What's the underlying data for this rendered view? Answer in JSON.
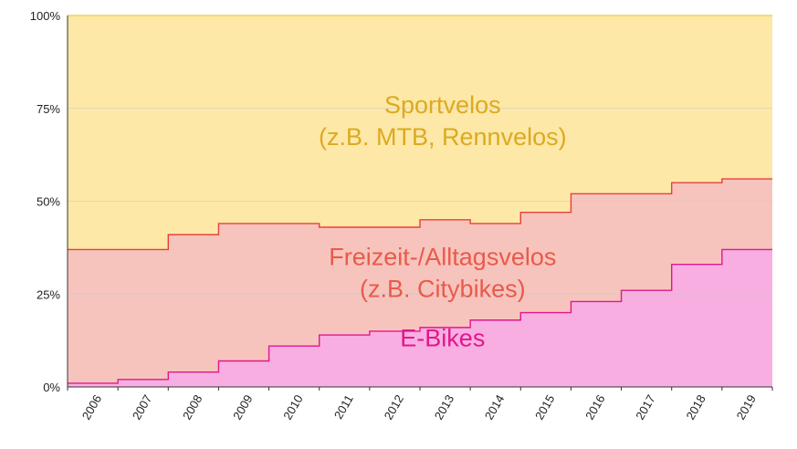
{
  "chart_data": {
    "type": "area",
    "stacking": "percent",
    "step": true,
    "categories": [
      "2006",
      "2007",
      "2008",
      "2009",
      "2010",
      "2011",
      "2012",
      "2013",
      "2014",
      "2015",
      "2016",
      "2017",
      "2018",
      "2019"
    ],
    "ylim": [
      0,
      100
    ],
    "y_ticks": [
      "0%",
      "25%",
      "50%",
      "75%",
      "100%"
    ],
    "y_tick_values": [
      0,
      25,
      50,
      75,
      100
    ],
    "grid": true,
    "series": [
      {
        "key": "ebikes",
        "values": [
          1,
          2,
          4,
          7,
          11,
          14,
          15,
          16,
          18,
          20,
          23,
          26,
          33,
          37
        ],
        "fill": "#f9aee2",
        "line": "#e0188c",
        "text_color": "#e0188c",
        "label_lines": [
          "E-Bikes"
        ]
      },
      {
        "key": "freizeit",
        "values": [
          36,
          35,
          37,
          37,
          33,
          29,
          28,
          29,
          26,
          27,
          29,
          26,
          22,
          19
        ],
        "fill": "#f7c4bd",
        "line": "#e8403c",
        "text_color": "#e95a4a",
        "label_lines": [
          "Freizeit-/Alltagsvelos",
          "(z.B. Citybikes)"
        ]
      },
      {
        "key": "sport",
        "values": [
          63,
          63,
          59,
          56,
          56,
          57,
          57,
          55,
          56,
          53,
          48,
          48,
          45,
          44
        ],
        "fill": "#fde8a7",
        "line": "#f2d25b",
        "text_color": "#dcaa20",
        "label_lines": [
          "Sportvelos",
          "(z.B. MTB, Rennvelos)"
        ]
      }
    ]
  }
}
